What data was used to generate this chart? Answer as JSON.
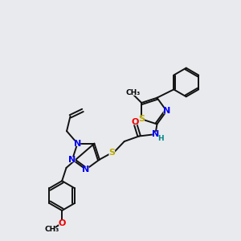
{
  "background_color": "#e8eaed",
  "figsize": [
    3.0,
    3.0
  ],
  "dpi": 100,
  "atom_colors": {
    "N": "#0000ee",
    "O": "#ee0000",
    "S": "#bbaa00",
    "C": "#000000",
    "H": "#008888"
  },
  "bond_color": "#111111",
  "bond_width": 1.4,
  "font_size_atom": 8,
  "font_size_small": 6.5,
  "xlim": [
    0,
    10
  ],
  "ylim": [
    0,
    10
  ]
}
